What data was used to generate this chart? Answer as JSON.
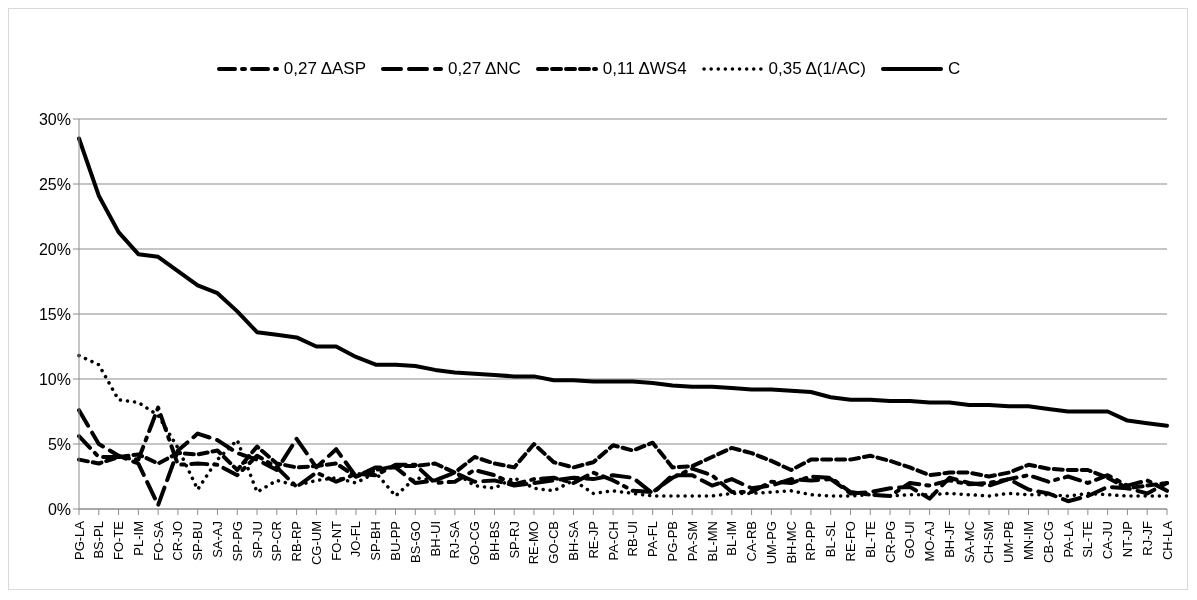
{
  "chart_data": {
    "type": "line",
    "categories": [
      "PG-LA",
      "BS-PL",
      "FO-TE",
      "PL-IM",
      "FO-SA",
      "CR-JO",
      "SP-BU",
      "SA-AJ",
      "SP-PG",
      "SP-JU",
      "SP-CR",
      "RB-RP",
      "CG-UM",
      "FO-NT",
      "JO-FL",
      "SP-BH",
      "BU-PP",
      "BS-GO",
      "BH-UI",
      "RJ-SA",
      "GO-CG",
      "BH-BS",
      "SP-RJ",
      "RE-MO",
      "GO-CB",
      "BH-SA",
      "RE-JP",
      "PA-CH",
      "RB-UI",
      "PA-FL",
      "PG-PB",
      "PA-SM",
      "BL-MN",
      "BL-IM",
      "CA-RB",
      "UM-PG",
      "BH-MC",
      "RP-PP",
      "BL-SL",
      "RE-FO",
      "BL-TE",
      "CR-PG",
      "GO-UI",
      "MO-AJ",
      "BH-JF",
      "SA-MC",
      "CH-SM",
      "UM-PB",
      "MN-IM",
      "CB-CG",
      "PA-LA",
      "SL-TE",
      "CA-JU",
      "NT-JP",
      "RJ-JF",
      "CH-LA"
    ],
    "series": [
      {
        "name": "0,27 ΔASP",
        "color": "#000000",
        "line_style": "dashdot",
        "values": [
          5.6,
          4.0,
          4.0,
          3.8,
          7.8,
          3.4,
          3.5,
          3.4,
          2.6,
          4.1,
          3.2,
          1.7,
          2.8,
          2.1,
          2.7,
          2.6,
          3.4,
          3.4,
          2.0,
          2.1,
          3.0,
          2.6,
          1.9,
          2.3,
          2.4,
          2.0,
          2.8,
          2.2,
          1.4,
          1.3,
          2.4,
          3.1,
          2.6,
          1.3,
          1.3,
          2.1,
          2.0,
          2.5,
          2.4,
          1.3,
          1.1,
          1.0,
          2.0,
          1.8,
          2.2,
          1.9,
          2.0,
          2.3,
          2.6,
          2.1,
          2.5,
          2.0,
          2.6,
          1.8,
          2.2,
          1.4
        ]
      },
      {
        "name": "0,27 ΔNC",
        "color": "#000000",
        "line_style": "longdash",
        "values": [
          7.6,
          5.0,
          4.1,
          3.5,
          0.3,
          4.5,
          5.8,
          5.3,
          4.3,
          3.8,
          3.0,
          5.4,
          3.2,
          4.6,
          2.5,
          3.2,
          3.2,
          2.0,
          2.2,
          2.8,
          2.1,
          2.2,
          1.8,
          2.0,
          2.2,
          2.4,
          2.3,
          2.6,
          2.4,
          1.2,
          2.6,
          2.6,
          1.8,
          2.3,
          1.6,
          1.8,
          2.3,
          2.2,
          2.3,
          1.2,
          1.3,
          1.6,
          1.7,
          0.8,
          2.4,
          2.0,
          1.8,
          2.3,
          1.5,
          1.2,
          0.6,
          1.0,
          1.7,
          1.6,
          1.2,
          2.0
        ]
      },
      {
        "name": "0,11 ΔWS4",
        "color": "#000000",
        "line_style": "dashed",
        "values": [
          3.8,
          3.5,
          4.0,
          4.2,
          3.5,
          4.3,
          4.2,
          4.5,
          3.0,
          4.8,
          3.5,
          3.2,
          3.3,
          3.5,
          2.5,
          3.0,
          3.3,
          3.3,
          3.5,
          2.8,
          4.0,
          3.5,
          3.2,
          5.0,
          3.6,
          3.2,
          3.6,
          4.9,
          4.5,
          5.1,
          3.2,
          3.3,
          4.0,
          4.7,
          4.3,
          3.7,
          3.0,
          3.8,
          3.8,
          3.8,
          4.1,
          3.7,
          3.2,
          2.6,
          2.8,
          2.8,
          2.5,
          2.8,
          3.4,
          3.1,
          3.0,
          3.0,
          2.4,
          1.6,
          1.8,
          2.0
        ]
      },
      {
        "name": "0,35 Δ(1/AC)",
        "color": "#000000",
        "line_style": "dotted",
        "values": [
          11.8,
          11.1,
          8.4,
          8.2,
          7.2,
          4.7,
          1.5,
          3.8,
          5.3,
          1.3,
          2.2,
          1.8,
          2.2,
          2.4,
          2.0,
          2.8,
          1.0,
          2.4,
          2.2,
          2.8,
          1.8,
          1.6,
          2.4,
          1.6,
          1.4,
          2.2,
          1.2,
          1.4,
          1.2,
          1.0,
          1.0,
          1.0,
          1.0,
          1.2,
          1.2,
          1.3,
          1.4,
          1.1,
          1.0,
          1.0,
          1.1,
          1.0,
          1.1,
          1.1,
          1.2,
          1.1,
          1.0,
          1.2,
          1.1,
          1.1,
          1.0,
          1.2,
          1.1,
          1.0,
          1.0,
          1.0
        ]
      },
      {
        "name": "C",
        "color": "#000000",
        "line_style": "solid",
        "values": [
          28.5,
          24.1,
          21.3,
          19.6,
          19.4,
          18.3,
          17.2,
          16.6,
          15.2,
          13.6,
          13.4,
          13.2,
          12.5,
          12.5,
          11.7,
          11.1,
          11.1,
          11.0,
          10.7,
          10.5,
          10.4,
          10.3,
          10.2,
          10.2,
          9.9,
          9.9,
          9.8,
          9.8,
          9.8,
          9.7,
          9.5,
          9.4,
          9.4,
          9.3,
          9.2,
          9.2,
          9.1,
          9.0,
          8.6,
          8.4,
          8.4,
          8.3,
          8.3,
          8.2,
          8.2,
          8.0,
          8.0,
          7.9,
          7.9,
          7.7,
          7.5,
          7.5,
          7.5,
          6.8,
          6.6,
          6.4
        ]
      }
    ],
    "ylim": [
      0,
      30
    ],
    "yticks": [
      {
        "value": 0,
        "label": "0%"
      },
      {
        "value": 5,
        "label": "5%"
      },
      {
        "value": 10,
        "label": "10%"
      },
      {
        "value": 15,
        "label": "15%"
      },
      {
        "value": 20,
        "label": "20%"
      },
      {
        "value": 25,
        "label": "25%"
      },
      {
        "value": 30,
        "label": "30%"
      }
    ],
    "grid": "y",
    "legend": "top",
    "marker": "none"
  }
}
